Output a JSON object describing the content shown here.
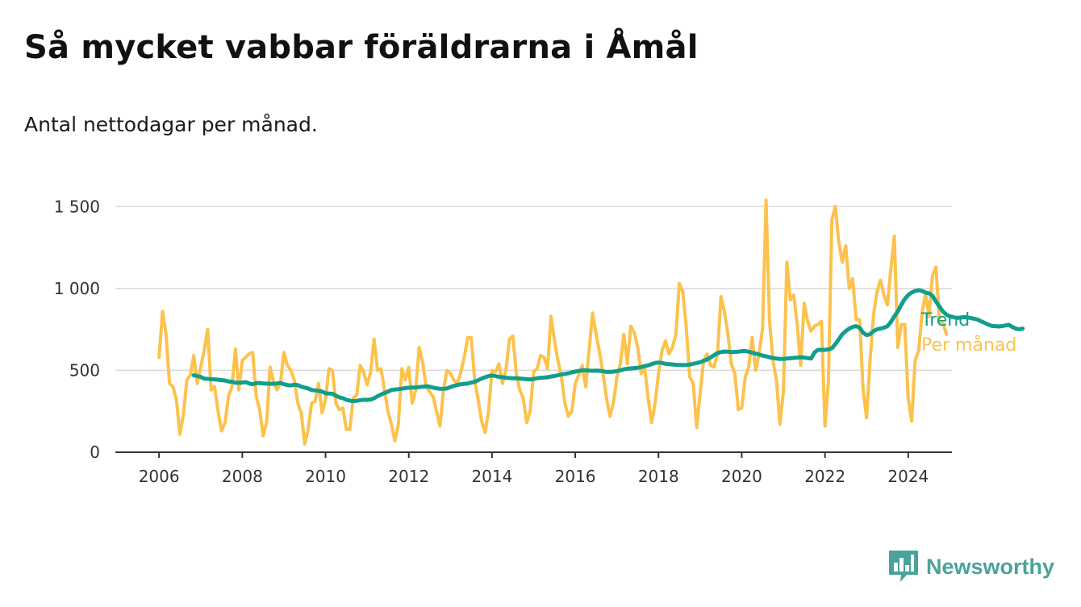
{
  "title": "Så mycket vabbar föräldrarna i Åmål",
  "subtitle": "Antal nettodagar per månad.",
  "brand": {
    "name": "Newsworthy",
    "icon": "bar-chart-speech-bubble-icon",
    "color": "#4aa39a"
  },
  "chart_data": {
    "type": "line",
    "x_ticks": [
      "2006",
      "2008",
      "2010",
      "2012",
      "2014",
      "2016",
      "2018",
      "2020",
      "2022",
      "2024"
    ],
    "y_ticks": [
      "0",
      "500",
      "1 000",
      "1 500"
    ],
    "y_tick_values": [
      0,
      500,
      1000,
      1500
    ],
    "xlim": [
      2004.95,
      2025.05
    ],
    "ylim": [
      0,
      1580
    ],
    "grid": "horizontal",
    "legend": "right, at line ends",
    "series": [
      {
        "name": "Per månad",
        "color": "#fcc24d",
        "x_start": 2006.0,
        "step": 0.0833333,
        "values": [
          580,
          860,
          720,
          420,
          400,
          320,
          110,
          230,
          440,
          470,
          590,
          420,
          520,
          620,
          750,
          380,
          400,
          250,
          130,
          180,
          340,
          400,
          630,
          380,
          560,
          580,
          600,
          610,
          340,
          260,
          100,
          180,
          520,
          430,
          380,
          420,
          610,
          530,
          500,
          440,
          300,
          240,
          50,
          140,
          300,
          310,
          420,
          240,
          320,
          510,
          500,
          300,
          260,
          270,
          140,
          140,
          330,
          350,
          530,
          490,
          410,
          490,
          690,
          500,
          510,
          380,
          250,
          170,
          70,
          170,
          510,
          440,
          520,
          300,
          380,
          640,
          550,
          400,
          370,
          340,
          250,
          160,
          380,
          500,
          480,
          440,
          420,
          490,
          580,
          700,
          700,
          440,
          320,
          190,
          120,
          250,
          500,
          490,
          540,
          420,
          500,
          690,
          710,
          480,
          380,
          330,
          180,
          250,
          490,
          510,
          590,
          580,
          510,
          830,
          680,
          560,
          460,
          300,
          220,
          250,
          420,
          470,
          530,
          400,
          630,
          850,
          720,
          610,
          480,
          330,
          220,
          300,
          460,
          540,
          720,
          540,
          770,
          730,
          640,
          480,
          520,
          330,
          180,
          300,
          480,
          620,
          680,
          600,
          640,
          720,
          1030,
          980,
          760,
          460,
          420,
          150,
          360,
          560,
          600,
          530,
          520,
          600,
          950,
          860,
          720,
          540,
          480,
          260,
          270,
          460,
          520,
          700,
          500,
          600,
          760,
          1540,
          800,
          560,
          440,
          170,
          370,
          1160,
          930,
          960,
          780,
          530,
          910,
          800,
          740,
          770,
          780,
          800,
          160,
          430,
          1420,
          1500,
          1280,
          1160,
          1260,
          1000,
          1060,
          810,
          810,
          380,
          210,
          560,
          840,
          980,
          1050,
          960,
          900,
          1120,
          1320,
          640,
          780,
          780,
          330,
          190,
          560,
          620,
          850,
          970,
          830,
          1080,
          1130,
          800,
          790,
          720
        ]
      },
      {
        "name": "Trend",
        "color": "#129e8c",
        "x_start": 2006.833,
        "step": 0.0833333,
        "values": [
          470,
          465,
          460,
          450,
          448,
          446,
          445,
          443,
          440,
          438,
          432,
          430,
          425,
          424,
          426,
          428,
          420,
          415,
          422,
          423,
          420,
          419,
          418,
          418,
          420,
          423,
          415,
          410,
          408,
          412,
          410,
          400,
          395,
          390,
          380,
          378,
          375,
          370,
          360,
          358,
          357,
          345,
          335,
          330,
          320,
          315,
          312,
          314,
          318,
          320,
          320,
          322,
          330,
          342,
          352,
          362,
          370,
          380,
          383,
          385,
          388,
          392,
          394,
          395,
          395,
          398,
          400,
          402,
          400,
          395,
          390,
          388,
          387,
          390,
          398,
          405,
          410,
          415,
          418,
          420,
          425,
          430,
          440,
          450,
          458,
          465,
          468,
          465,
          460,
          458,
          455,
          453,
          452,
          452,
          450,
          448,
          446,
          445,
          447,
          452,
          455,
          456,
          458,
          462,
          465,
          470,
          475,
          478,
          482,
          488,
          492,
          496,
          500,
          500,
          498,
          497,
          498,
          497,
          494,
          490,
          490,
          492,
          495,
          500,
          506,
          510,
          512,
          514,
          516,
          520,
          526,
          530,
          538,
          545,
          548,
          545,
          540,
          538,
          536,
          534,
          533,
          532,
          533,
          535,
          540,
          545,
          550,
          558,
          566,
          578,
          592,
          605,
          612,
          615,
          614,
          612,
          613,
          614,
          617,
          618,
          614,
          608,
          602,
          597,
          590,
          585,
          580,
          575,
          572,
          570,
          570,
          572,
          574,
          576,
          578,
          580,
          578,
          575,
          572,
          610,
          625,
          625,
          625,
          628,
          635,
          660,
          690,
          720,
          740,
          755,
          765,
          770,
          760,
          730,
          715,
          720,
          740,
          750,
          755,
          760,
          770,
          795,
          830,
          860,
          900,
          935,
          960,
          975,
          985,
          990,
          985,
          975,
          970,
          955,
          920,
          890,
          860,
          840,
          830,
          825,
          820,
          822,
          825,
          823,
          820,
          815,
          810,
          800,
          790,
          780,
          772,
          770,
          768,
          770,
          774,
          778,
          765,
          755,
          750,
          755
        ]
      }
    ]
  }
}
